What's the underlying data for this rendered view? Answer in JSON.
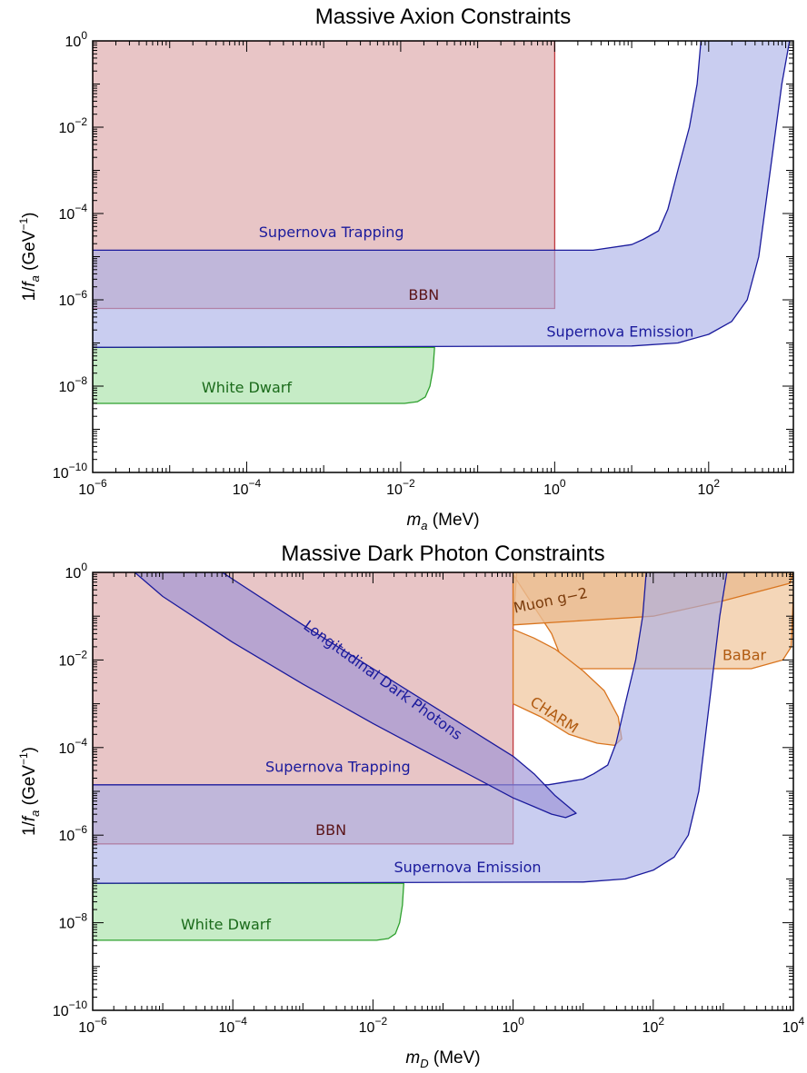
{
  "chart_data": [
    {
      "type": "area",
      "title": "Massive Axion Constraints",
      "xlabel": {
        "var": "m",
        "sub": "a",
        "unit": " (MeV)"
      },
      "ylabel": {
        "prefix": "1/",
        "var": "f",
        "sub": "a",
        "unit": " (GeV",
        "unit_sup": "−1",
        "unit_end": ")"
      },
      "xscale": "log",
      "yscale": "log",
      "xlim_exp": [
        -6,
        3.1
      ],
      "ylim_exp": [
        -10,
        0
      ],
      "x_ticks": [
        {
          "base": "10",
          "exp": "−6",
          "val": -6
        },
        {
          "base": "10",
          "exp": "−4",
          "val": -4
        },
        {
          "base": "10",
          "exp": "−2",
          "val": -2
        },
        {
          "base": "10",
          "exp": "0",
          "val": 0
        },
        {
          "base": "10",
          "exp": "2",
          "val": 2
        }
      ],
      "y_ticks": [
        {
          "base": "10",
          "exp": "−10",
          "val": -10
        },
        {
          "base": "10",
          "exp": "−8",
          "val": -8
        },
        {
          "base": "10",
          "exp": "−6",
          "val": -6
        },
        {
          "base": "10",
          "exp": "−4",
          "val": -4
        },
        {
          "base": "10",
          "exp": "−2",
          "val": -2
        },
        {
          "base": "10",
          "exp": "0",
          "val": 0
        }
      ],
      "regions": [
        {
          "name": "BBN",
          "fill": "#e8c5c6",
          "stroke": "#c0393e",
          "points": [
            [
              -6,
              -6.2
            ],
            [
              0,
              -6.2
            ],
            [
              0,
              0
            ],
            [
              -6,
              0
            ]
          ],
          "label": {
            "text": "BBN",
            "x": -1.7,
            "y": -6.0,
            "color": "#5a1418"
          }
        },
        {
          "name": "White Dwarf",
          "fill": "#c6ecc6",
          "stroke": "#2ea02e",
          "points": [
            [
              -6,
              -7.1
            ],
            [
              -1.56,
              -7.1
            ],
            [
              -1.58,
              -7.6
            ],
            [
              -1.62,
              -8.0
            ],
            [
              -1.68,
              -8.25
            ],
            [
              -1.78,
              -8.36
            ],
            [
              -1.95,
              -8.4
            ],
            [
              -6,
              -8.4
            ]
          ],
          "label": {
            "text": "White Dwarf",
            "x": -4.0,
            "y": -8.15,
            "color": "#1a6a1a"
          }
        },
        {
          "name": "Supernova Emission / Trapping",
          "fill": "#a8aee6",
          "stroke": "#1a1a9c",
          "opacity": 0.62,
          "points": [
            [
              -6,
              -7.1
            ],
            [
              1.0,
              -7.07
            ],
            [
              1.6,
              -7.0
            ],
            [
              2.0,
              -6.8
            ],
            [
              2.3,
              -6.5
            ],
            [
              2.5,
              -6.0
            ],
            [
              2.65,
              -5.0
            ],
            [
              2.8,
              -3.0
            ],
            [
              2.95,
              -1.0
            ],
            [
              3.05,
              0
            ],
            [
              1.9,
              0
            ],
            [
              1.85,
              -1.0
            ],
            [
              1.75,
              -2.0
            ],
            [
              1.6,
              -3.0
            ],
            [
              1.47,
              -3.9
            ],
            [
              1.35,
              -4.4
            ],
            [
              1.15,
              -4.6
            ],
            [
              1.0,
              -4.72
            ],
            [
              0.5,
              -4.85
            ],
            [
              -6,
              -4.85
            ]
          ],
          "label": {
            "text": "Supernova Emission",
            "x": 0.85,
            "y": -6.85,
            "color": "#1a1a9c"
          },
          "label2": {
            "text": "Supernova Trapping",
            "x": -2.9,
            "y": -4.55,
            "color": "#1a1a9c"
          }
        }
      ]
    },
    {
      "type": "area",
      "title": "Massive Dark Photon Constraints",
      "xlabel": {
        "var": "m",
        "sub": "D",
        "unit": " (MeV)"
      },
      "ylabel": {
        "prefix": "1/",
        "var": "f",
        "sub": "a",
        "unit": " (GeV",
        "unit_sup": "−1",
        "unit_end": ")"
      },
      "xscale": "log",
      "yscale": "log",
      "xlim_exp": [
        -6,
        4
      ],
      "ylim_exp": [
        -10,
        0
      ],
      "x_ticks": [
        {
          "base": "10",
          "exp": "−6",
          "val": -6
        },
        {
          "base": "10",
          "exp": "−4",
          "val": -4
        },
        {
          "base": "10",
          "exp": "−2",
          "val": -2
        },
        {
          "base": "10",
          "exp": "0",
          "val": 0
        },
        {
          "base": "10",
          "exp": "2",
          "val": 2
        },
        {
          "base": "10",
          "exp": "4",
          "val": 4
        }
      ],
      "y_ticks": [
        {
          "base": "10",
          "exp": "−10",
          "val": -10
        },
        {
          "base": "10",
          "exp": "−8",
          "val": -8
        },
        {
          "base": "10",
          "exp": "−6",
          "val": -6
        },
        {
          "base": "10",
          "exp": "−4",
          "val": -4
        },
        {
          "base": "10",
          "exp": "−2",
          "val": -2
        },
        {
          "base": "10",
          "exp": "0",
          "val": 0
        }
      ],
      "regions": [
        {
          "name": "BBN",
          "fill": "#e8c5c6",
          "stroke": "#c0393e",
          "points": [
            [
              -6,
              -6.2
            ],
            [
              0,
              -6.2
            ],
            [
              0,
              0
            ],
            [
              -6,
              0
            ]
          ],
          "label": {
            "text": "BBN",
            "x": -2.6,
            "y": -6.0,
            "color": "#5a1418"
          }
        },
        {
          "name": "BaBar",
          "fill": "#f4d6b8",
          "stroke": "#d9751f",
          "points": [
            [
              0,
              -1.25
            ],
            [
              0,
              -0.05
            ],
            [
              0.55,
              -1.4
            ],
            [
              0.75,
              -2.2
            ],
            [
              1.8,
              -2.2
            ],
            [
              2.7,
              -2.2
            ],
            [
              3.4,
              -2.2
            ],
            [
              3.85,
              -2.0
            ],
            [
              3.97,
              -1.7
            ],
            [
              4.0,
              -0.5
            ],
            [
              4.0,
              0
            ],
            [
              0.05,
              0
            ]
          ],
          "label": {
            "text": "BaBar",
            "x": 3.3,
            "y": -2.0,
            "color": "#b05a10"
          }
        },
        {
          "name": "CHARM",
          "fill": "#f4d6b8",
          "stroke": "#d9751f",
          "points": [
            [
              0,
              -1.3
            ],
            [
              0.3,
              -1.5
            ],
            [
              0.6,
              -1.75
            ],
            [
              1.0,
              -2.25
            ],
            [
              1.3,
              -2.7
            ],
            [
              1.5,
              -3.3
            ],
            [
              1.55,
              -3.8
            ],
            [
              1.45,
              -3.95
            ],
            [
              1.2,
              -3.9
            ],
            [
              0.8,
              -3.7
            ],
            [
              0.4,
              -3.3
            ],
            [
              0.0,
              -3.0
            ]
          ],
          "label": {
            "text": "CHARM",
            "x": 0.55,
            "y": -3.35,
            "color": "#b05a10",
            "rotate": 33
          }
        },
        {
          "name": "Muon g-2",
          "fill": "#eabc92",
          "stroke": "#d9751f",
          "opacity": 0.82,
          "points": [
            [
              0,
              -1.2
            ],
            [
              1.0,
              -1.1
            ],
            [
              2.0,
              -1.0
            ],
            [
              3.0,
              -0.65
            ],
            [
              3.95,
              -0.25
            ],
            [
              4.0,
              0
            ],
            [
              0,
              0
            ]
          ],
          "label": {
            "text": "Muon g−2",
            "x": 0.55,
            "y": -0.75,
            "color": "#7a3a0a",
            "rotate": -12
          }
        },
        {
          "name": "White Dwarf",
          "fill": "#c6ecc6",
          "stroke": "#2ea02e",
          "points": [
            [
              -6,
              -7.1
            ],
            [
              -1.56,
              -7.1
            ],
            [
              -1.58,
              -7.6
            ],
            [
              -1.62,
              -8.0
            ],
            [
              -1.68,
              -8.25
            ],
            [
              -1.78,
              -8.36
            ],
            [
              -1.95,
              -8.4
            ],
            [
              -6,
              -8.4
            ]
          ],
          "label": {
            "text": "White Dwarf",
            "x": -4.1,
            "y": -8.15,
            "color": "#1a6a1a"
          }
        },
        {
          "name": "Supernova Emission / Trapping",
          "fill": "#a8aee6",
          "stroke": "#1a1a9c",
          "opacity": 0.62,
          "points": [
            [
              -6,
              -7.1
            ],
            [
              1.0,
              -7.07
            ],
            [
              1.6,
              -7.0
            ],
            [
              2.0,
              -6.8
            ],
            [
              2.3,
              -6.5
            ],
            [
              2.5,
              -6.0
            ],
            [
              2.65,
              -5.0
            ],
            [
              2.8,
              -3.0
            ],
            [
              2.95,
              -1.0
            ],
            [
              3.05,
              0
            ],
            [
              1.9,
              0
            ],
            [
              1.85,
              -1.0
            ],
            [
              1.75,
              -2.0
            ],
            [
              1.6,
              -3.0
            ],
            [
              1.47,
              -3.9
            ],
            [
              1.35,
              -4.4
            ],
            [
              1.15,
              -4.6
            ],
            [
              1.0,
              -4.72
            ],
            [
              0.5,
              -4.85
            ],
            [
              -6,
              -4.85
            ]
          ],
          "label": {
            "text": "Supernova Emission",
            "x": -0.65,
            "y": -6.85,
            "color": "#1a1a9c"
          },
          "label2": {
            "text": "Supernova Trapping",
            "x": -2.5,
            "y": -4.55,
            "color": "#1a1a9c"
          }
        },
        {
          "name": "Longitudinal Dark Photons",
          "fill": "#9c92d6",
          "stroke": "#1a1a9c",
          "opacity": 0.65,
          "points": [
            [
              -5.4,
              0
            ],
            [
              -4.15,
              0
            ],
            [
              -3.0,
              -1.2
            ],
            [
              -2.0,
              -2.2
            ],
            [
              -1.0,
              -3.2
            ],
            [
              -0.4,
              -3.8
            ],
            [
              0.0,
              -4.2
            ],
            [
              0.3,
              -4.6
            ],
            [
              0.6,
              -5.1
            ],
            [
              0.9,
              -5.5
            ],
            [
              0.75,
              -5.6
            ],
            [
              0.55,
              -5.52
            ],
            [
              0.3,
              -5.35
            ],
            [
              0.0,
              -5.15
            ],
            [
              -1.0,
              -4.3
            ],
            [
              -2.0,
              -3.45
            ],
            [
              -3.0,
              -2.55
            ],
            [
              -4.0,
              -1.6
            ],
            [
              -5.0,
              -0.55
            ]
          ],
          "label": {
            "text": "Longitudinal Dark Photons",
            "x": -1.9,
            "y": -2.55,
            "color": "#1a1a9c",
            "rotate": 36
          }
        }
      ]
    }
  ]
}
